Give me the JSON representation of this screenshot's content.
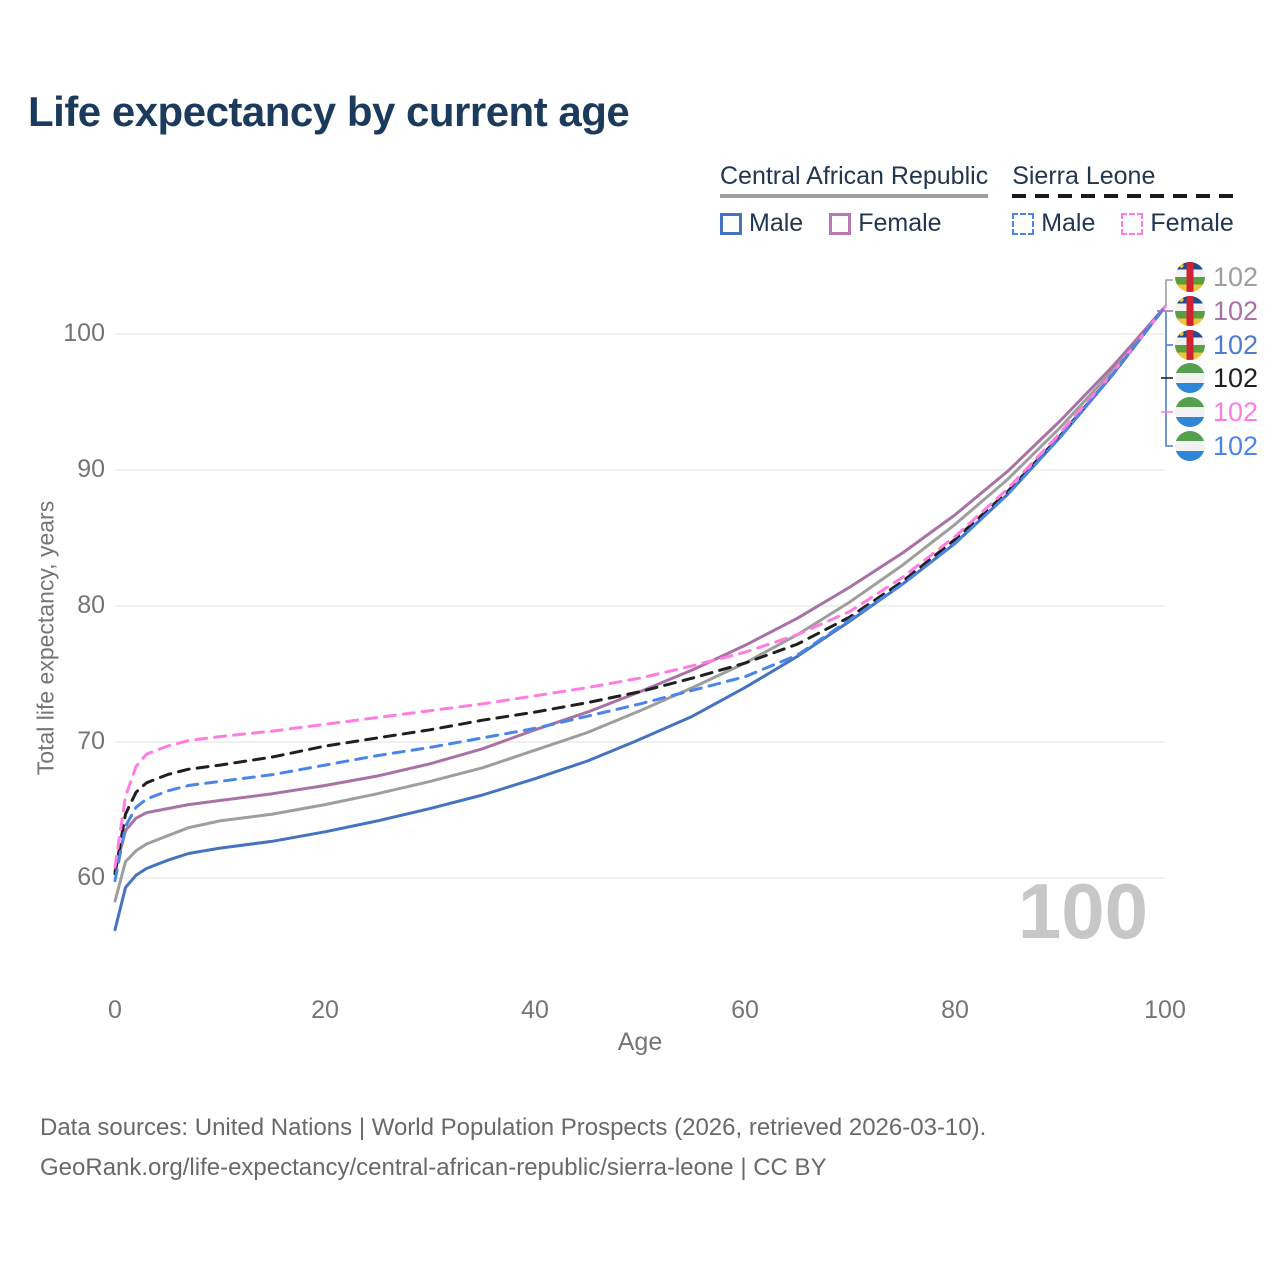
{
  "title": "Life expectancy by current age",
  "watermark": "100",
  "legend": {
    "groups": [
      {
        "country": "Central African Republic",
        "line_style": "solid",
        "items": [
          {
            "label": "Male",
            "color_key": "car_male",
            "dashed": false
          },
          {
            "label": "Female",
            "color_key": "car_female_swatch",
            "dashed": false
          }
        ]
      },
      {
        "country": "Sierra Leone",
        "line_style": "dashed",
        "items": [
          {
            "label": "Male",
            "color_key": "sl_male",
            "dashed": true
          },
          {
            "label": "Female",
            "color_key": "sl_female",
            "dashed": true
          }
        ]
      }
    ]
  },
  "colors": {
    "car_male": "#4673bf",
    "car_female": "#a972a6",
    "car_female_swatch": "#b57ab5",
    "car_total": "#9e9e9e",
    "sl_male": "#4a86e8",
    "sl_female": "#ff7ce1",
    "sl_total": "#1f1f1f",
    "car_male_label": "#4f7bd0",
    "grid": "#ebebeb",
    "tick": "#757575",
    "title": "#1b3a5c",
    "watermark": "#c7c7c7"
  },
  "end_labels": [
    {
      "flag": "car",
      "value": "102",
      "color_key": "car_total",
      "series": "Central African Republic Total",
      "y": 277
    },
    {
      "flag": "car",
      "value": "102",
      "color_key": "car_female",
      "series": "Central African Republic Female",
      "y": 311
    },
    {
      "flag": "car",
      "value": "102",
      "color_key": "car_male_label",
      "series": "Central African Republic Male",
      "y": 345
    },
    {
      "flag": "sl",
      "value": "102",
      "color_key": "sl_total",
      "series": "Sierra Leone Total",
      "y": 378
    },
    {
      "flag": "sl",
      "value": "102",
      "color_key": "sl_female",
      "series": "Sierra Leone Female",
      "y": 412
    },
    {
      "flag": "sl",
      "value": "102",
      "color_key": "sl_male",
      "series": "Sierra Leone Male",
      "y": 446
    }
  ],
  "footer": {
    "line1": "Data sources: United Nations | World Population Prospects (2026, retrieved 2026-03-10).",
    "line2": "GeoRank.org/life-expectancy/central-african-republic/sierra-leone | CC BY"
  },
  "chart_data": {
    "type": "line",
    "title": "Life expectancy by current age",
    "xlabel": "Age",
    "ylabel": "Total life expectancy, years",
    "x_ticks": [
      0,
      20,
      40,
      60,
      80,
      100
    ],
    "y_ticks": [
      60,
      70,
      80,
      90,
      100
    ],
    "xlim": [
      0,
      100
    ],
    "ylim": [
      52,
      105.5
    ],
    "grid": true,
    "legend_position": "top-right",
    "x": [
      0,
      1,
      2,
      3,
      5,
      7,
      10,
      15,
      20,
      25,
      30,
      35,
      40,
      45,
      50,
      55,
      60,
      65,
      70,
      75,
      80,
      85,
      90,
      95,
      100
    ],
    "series": [
      {
        "name": "Central African Republic Total",
        "style": "solid",
        "color_key": "car_total",
        "values": [
          58.3,
          61.2,
          62.0,
          62.5,
          63.1,
          63.7,
          64.2,
          64.7,
          65.4,
          66.2,
          67.1,
          68.1,
          69.4,
          70.7,
          72.3,
          74.0,
          75.8,
          77.9,
          80.3,
          83.0,
          86.0,
          89.3,
          93.1,
          97.3,
          102
        ]
      },
      {
        "name": "Central African Republic Female",
        "style": "solid",
        "color_key": "car_female",
        "values": [
          60.5,
          63.5,
          64.4,
          64.8,
          65.1,
          65.4,
          65.7,
          66.2,
          66.8,
          67.5,
          68.4,
          69.5,
          70.9,
          72.2,
          73.7,
          75.3,
          77.1,
          79.1,
          81.4,
          83.9,
          86.7,
          89.9,
          93.6,
          97.6,
          102
        ]
      },
      {
        "name": "Central African Republic Male",
        "style": "solid",
        "color_key": "car_male",
        "values": [
          56.2,
          59.3,
          60.2,
          60.7,
          61.3,
          61.8,
          62.2,
          62.7,
          63.4,
          64.2,
          65.1,
          66.1,
          67.3,
          68.6,
          70.2,
          71.9,
          74.0,
          76.3,
          78.9,
          81.6,
          84.6,
          88.2,
          92.4,
          97.0,
          102
        ]
      },
      {
        "name": "Sierra Leone Total",
        "style": "dashed",
        "color_key": "sl_total",
        "values": [
          60.3,
          64.7,
          66.3,
          67.0,
          67.6,
          68.0,
          68.3,
          68.9,
          69.7,
          70.3,
          70.9,
          71.6,
          72.2,
          72.9,
          73.7,
          74.7,
          75.8,
          77.2,
          79.2,
          81.8,
          84.9,
          88.4,
          92.5,
          97.0,
          102
        ]
      },
      {
        "name": "Sierra Leone Female",
        "style": "dashed",
        "color_key": "sl_female",
        "values": [
          60.8,
          66.0,
          68.2,
          69.1,
          69.7,
          70.1,
          70.4,
          70.8,
          71.3,
          71.8,
          72.3,
          72.8,
          73.4,
          74.0,
          74.7,
          75.6,
          76.6,
          77.9,
          79.6,
          82.1,
          85.1,
          88.6,
          92.7,
          97.1,
          102
        ]
      },
      {
        "name": "Sierra Leone Male",
        "style": "dashed",
        "color_key": "sl_male",
        "values": [
          59.8,
          63.8,
          65.2,
          65.8,
          66.4,
          66.8,
          67.1,
          67.6,
          68.3,
          69.0,
          69.6,
          70.3,
          71.0,
          71.9,
          72.8,
          73.8,
          74.8,
          76.4,
          79.0,
          81.6,
          84.6,
          88.2,
          92.4,
          97.0,
          102
        ]
      }
    ]
  }
}
